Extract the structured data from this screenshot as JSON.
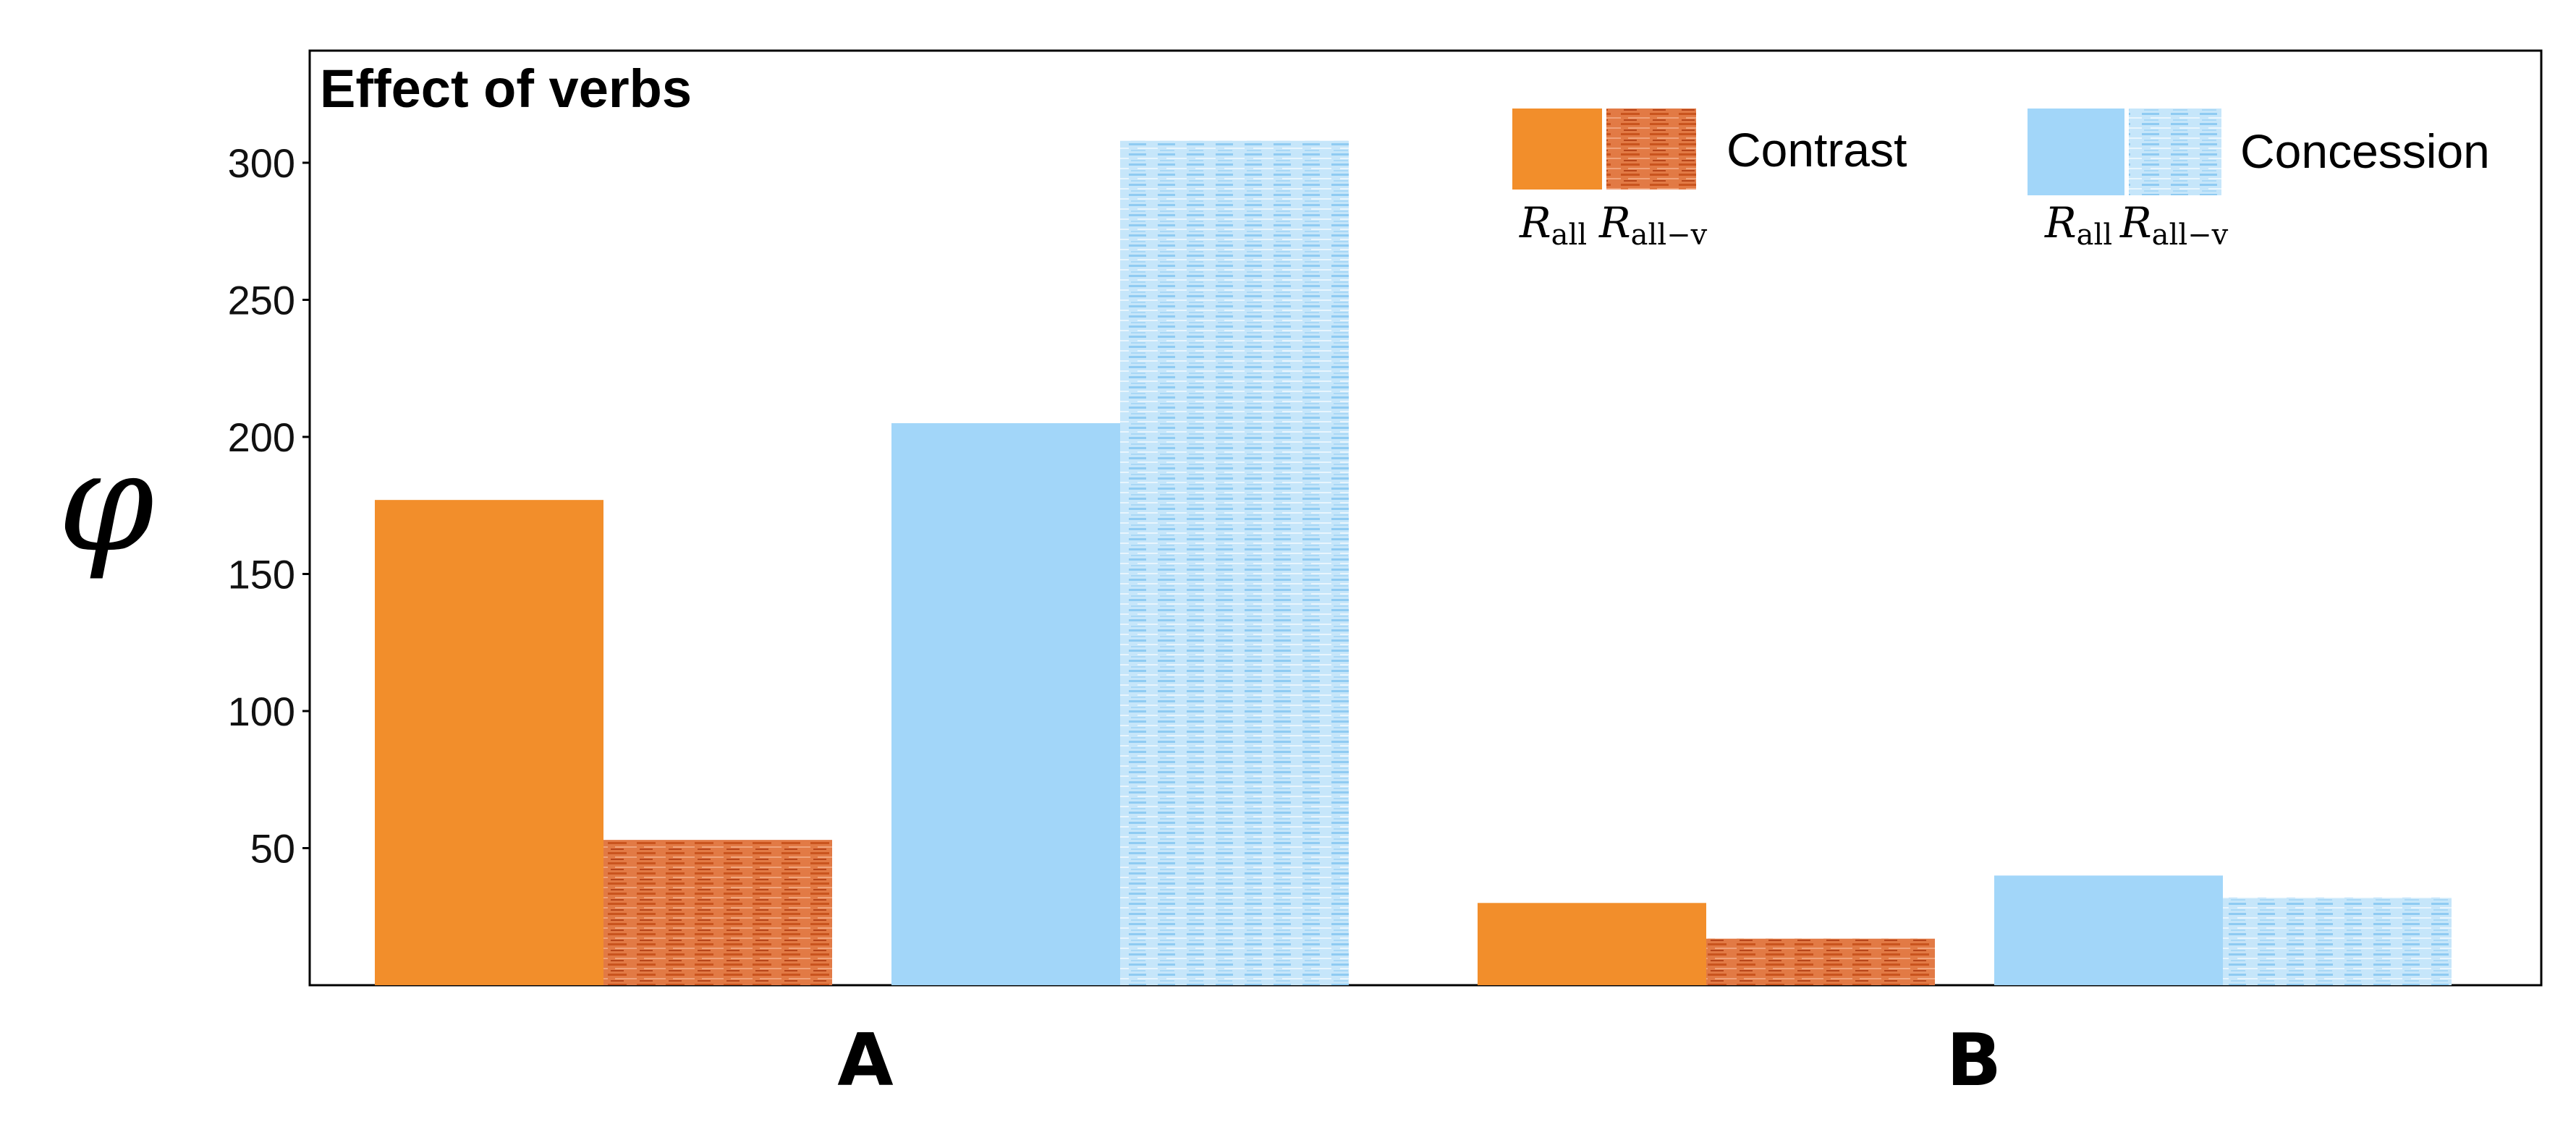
{
  "chart_data": {
    "type": "bar",
    "title": "Effect of verbs",
    "ylabel": "φ",
    "xlabel": "",
    "categories": [
      "A",
      "B"
    ],
    "ylim": [
      0,
      340
    ],
    "yticks": [
      50,
      100,
      150,
      200,
      250,
      300
    ],
    "grid": false,
    "legend_position": "top-right",
    "legend_groups": [
      {
        "name": "Contrast",
        "sublabels": [
          {
            "main": "R",
            "sub": "all"
          },
          {
            "main": "R",
            "sub": "all−v"
          }
        ]
      },
      {
        "name": "Concession",
        "sublabels": [
          {
            "main": "R",
            "sub": "all"
          },
          {
            "main": "R",
            "sub": "all−v"
          }
        ]
      }
    ],
    "series": [
      {
        "name": "Contrast R_all",
        "color": "#F28E2B",
        "pattern": "solid",
        "values": [
          177,
          30
        ]
      },
      {
        "name": "Contrast R_all-v",
        "color": "#D9622B",
        "pattern": "hatched",
        "values": [
          53,
          17
        ]
      },
      {
        "name": "Concession R_all",
        "color": "#A2D6F9",
        "pattern": "solid",
        "values": [
          205,
          40
        ]
      },
      {
        "name": "Concession R_all-v",
        "color": "#B8DFF7",
        "pattern": "hatched",
        "values": [
          308,
          32
        ]
      }
    ]
  }
}
